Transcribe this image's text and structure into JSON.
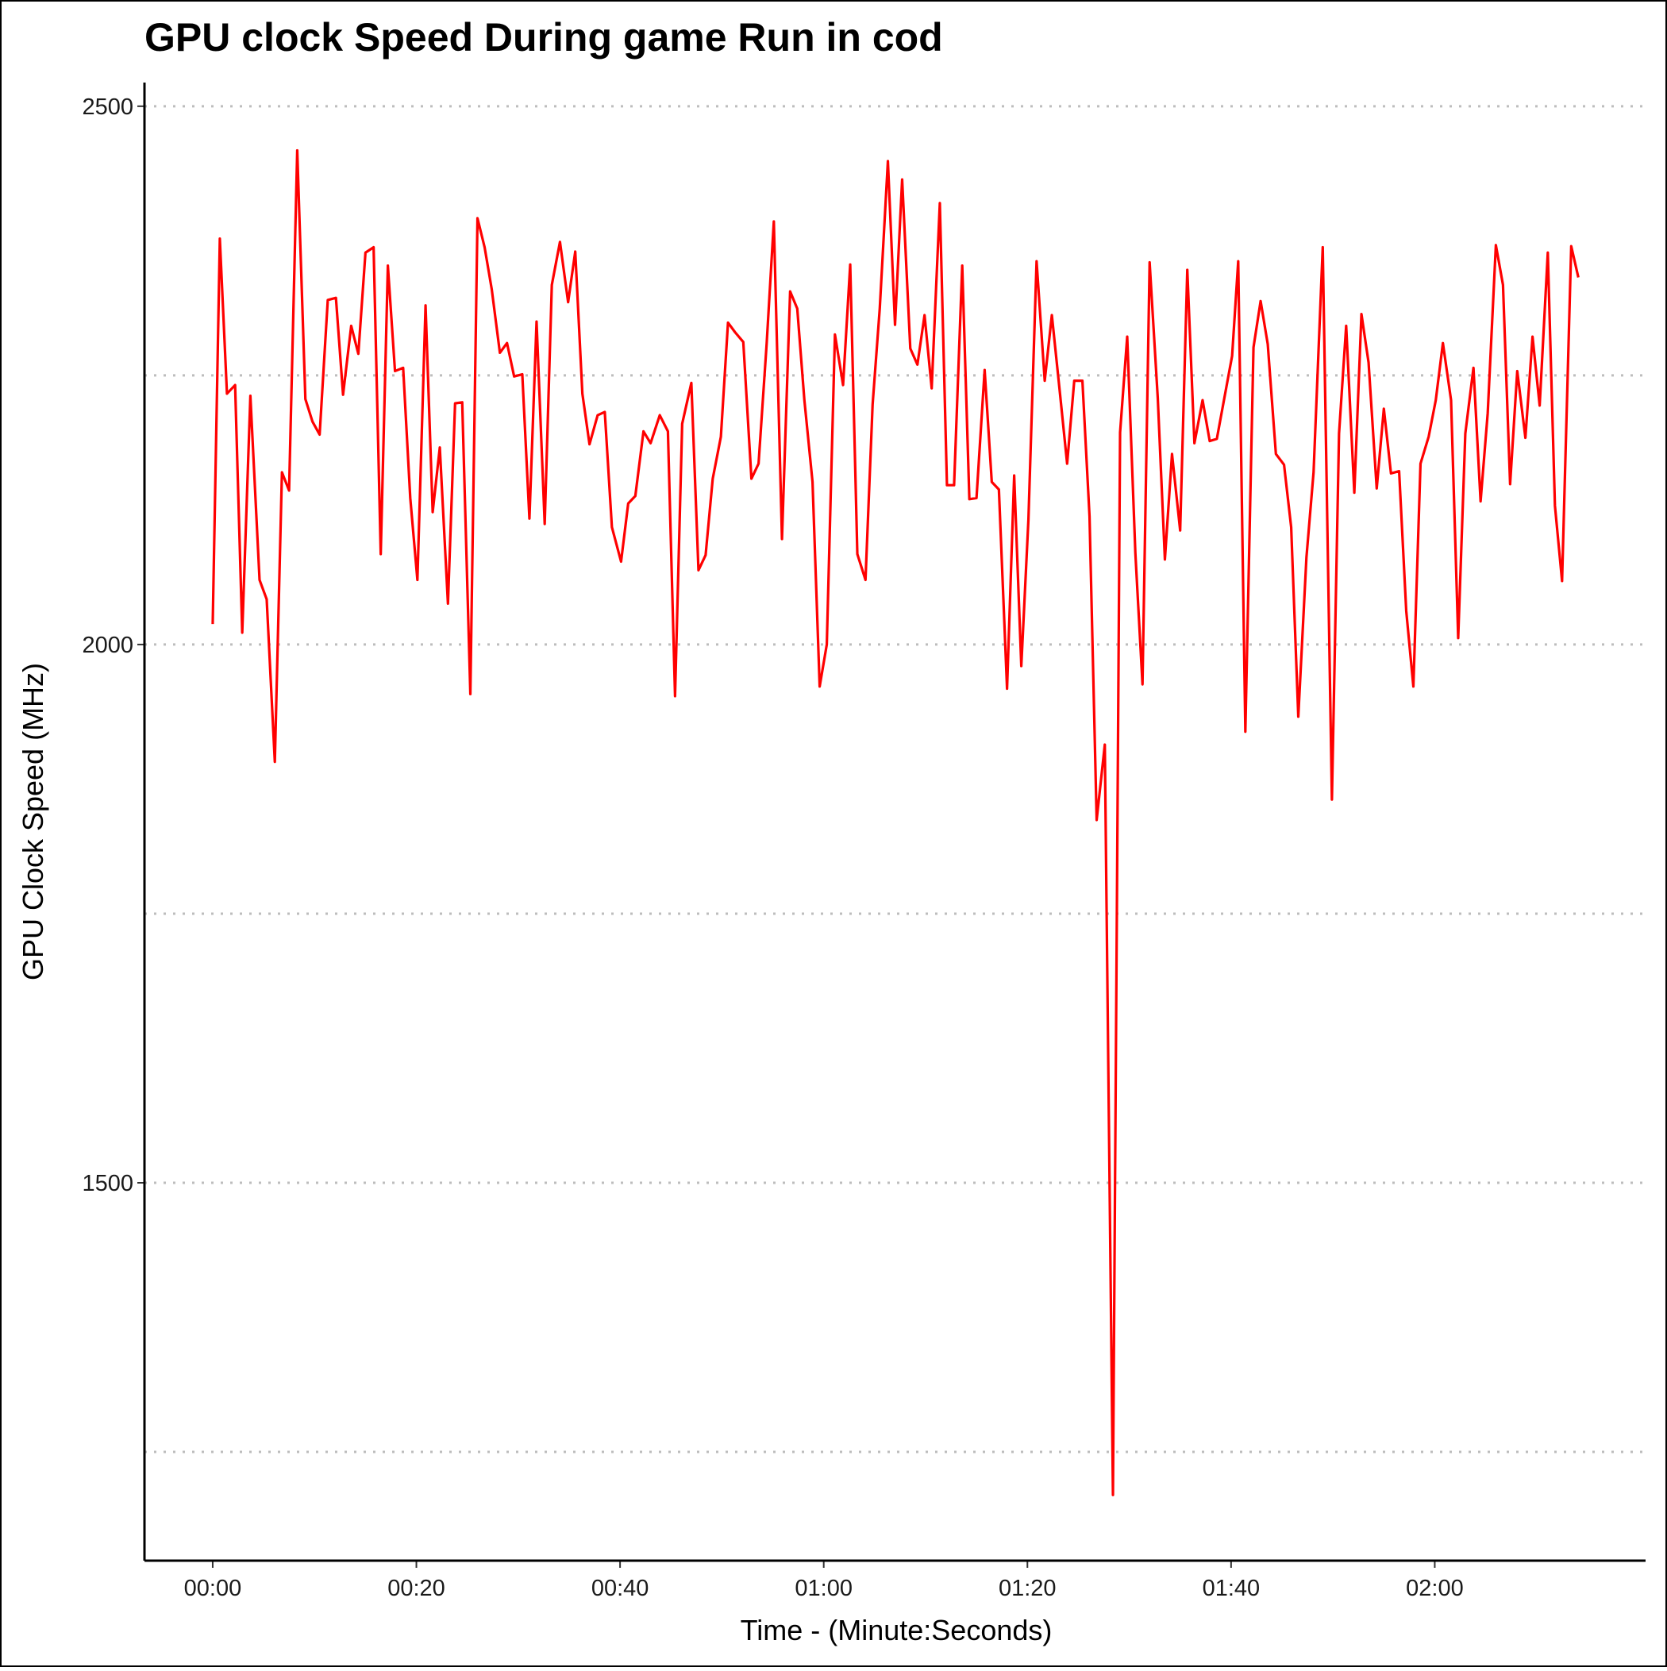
{
  "chart_data": {
    "type": "line",
    "title": "GPU clock Speed During game Run in cod",
    "x_label": "Time - (Minute:Seconds)",
    "y_label": "GPU Clock Speed (MHz)",
    "color": "#ff0000",
    "grid": true,
    "xlim": [
      -6.7,
      140.7
    ],
    "ylim": [
      1149,
      2522
    ],
    "xticks": [
      {
        "value": 0,
        "label": "00:00"
      },
      {
        "value": 20,
        "label": "00:20"
      },
      {
        "value": 40,
        "label": "00:40"
      },
      {
        "value": 60,
        "label": "01:00"
      },
      {
        "value": 80,
        "label": "01:20"
      },
      {
        "value": 100,
        "label": "01:40"
      },
      {
        "value": 120,
        "label": "02:00"
      }
    ],
    "yticks": [
      1500,
      2000,
      2500
    ],
    "y_minor_gridlines": [
      1250,
      1750,
      2250
    ],
    "x": [
      0.0,
      0.7,
      1.4,
      2.2,
      2.9,
      3.7,
      4.6,
      5.3,
      6.1,
      6.8,
      7.5,
      8.3,
      9.1,
      9.8,
      10.5,
      11.3,
      12.1,
      12.8,
      13.6,
      14.3,
      15.0,
      15.8,
      16.5,
      17.2,
      17.9,
      18.7,
      19.4,
      20.1,
      20.9,
      21.6,
      22.3,
      23.1,
      23.8,
      24.5,
      25.3,
      26.0,
      26.7,
      27.4,
      28.2,
      28.9,
      29.6,
      30.4,
      31.1,
      31.8,
      32.6,
      33.3,
      34.1,
      34.9,
      35.6,
      36.3,
      37.0,
      37.8,
      38.5,
      39.2,
      40.1,
      40.8,
      41.5,
      42.3,
      43.0,
      43.9,
      44.7,
      45.4,
      46.1,
      47.0,
      47.7,
      48.4,
      49.1,
      49.9,
      50.6,
      51.3,
      52.1,
      52.9,
      53.6,
      54.4,
      55.1,
      55.9,
      56.7,
      57.4,
      58.1,
      58.9,
      59.6,
      60.3,
      61.1,
      61.9,
      62.6,
      63.3,
      64.1,
      64.8,
      65.5,
      66.3,
      67.0,
      67.7,
      68.5,
      69.2,
      69.9,
      70.6,
      71.4,
      72.1,
      72.8,
      73.6,
      74.3,
      75.0,
      75.8,
      76.5,
      77.2,
      78.0,
      78.7,
      79.4,
      80.1,
      80.9,
      81.7,
      82.4,
      83.2,
      83.9,
      84.6,
      85.4,
      86.1,
      86.8,
      87.6,
      88.4,
      89.1,
      89.8,
      90.6,
      91.3,
      92.0,
      92.8,
      93.5,
      94.2,
      95.0,
      95.7,
      96.4,
      97.2,
      97.9,
      98.6,
      99.3,
      100.1,
      100.7,
      101.4,
      102.2,
      102.9,
      103.6,
      104.4,
      105.2,
      105.9,
      106.6,
      107.4,
      108.1,
      109.0,
      109.9,
      110.6,
      111.3,
      112.1,
      112.8,
      113.5,
      114.3,
      115.0,
      115.7,
      116.5,
      117.2,
      117.9,
      118.6,
      119.4,
      120.1,
      120.8,
      121.6,
      122.3,
      123.0,
      123.8,
      124.5,
      125.2,
      126.0,
      126.7,
      127.4,
      128.1,
      128.9,
      129.6,
      130.3,
      131.1,
      131.8,
      132.5,
      133.4,
      134.1
    ],
    "values": [
      2019,
      2377,
      2233,
      2241,
      2011,
      2231,
      2060,
      2042,
      1891,
      2160,
      2143,
      2459,
      2228,
      2207,
      2195,
      2320,
      2322,
      2232,
      2296,
      2270,
      2364,
      2369,
      2084,
      2352,
      2254,
      2257,
      2136,
      2060,
      2315,
      2123,
      2183,
      2038,
      2224,
      2225,
      1954,
      2396,
      2369,
      2330,
      2271,
      2280,
      2249,
      2251,
      2117,
      2300,
      2112,
      2334,
      2374,
      2318,
      2365,
      2233,
      2186,
      2213,
      2216,
      2109,
      2077,
      2131,
      2138,
      2198,
      2187,
      2213,
      2198,
      1952,
      2205,
      2243,
      2069,
      2083,
      2154,
      2193,
      2299,
      2290,
      2281,
      2154,
      2168,
      2280,
      2393,
      2098,
      2328,
      2312,
      2227,
      2151,
      1961,
      2000,
      2288,
      2241,
      2353,
      2084,
      2060,
      2223,
      2312,
      2449,
      2297,
      2432,
      2275,
      2260,
      2306,
      2238,
      2410,
      2148,
      2148,
      2352,
      2135,
      2136,
      2255,
      2151,
      2144,
      1959,
      2157,
      1980,
      2116,
      2356,
      2245,
      2306,
      2233,
      2168,
      2245,
      2245,
      2119,
      1837,
      1907,
      1210,
      2197,
      2286,
      2085,
      1963,
      2355,
      2229,
      2079,
      2177,
      2106,
      2348,
      2187,
      2227,
      2189,
      2191,
      2227,
      2268,
      2356,
      1919,
      2276,
      2319,
      2279,
      2177,
      2167,
      2109,
      1933,
      2081,
      2160,
      2369,
      1856,
      2196,
      2296,
      2141,
      2307,
      2262,
      2145,
      2219,
      2159,
      2161,
      2031,
      1961,
      2168,
      2193,
      2227,
      2280,
      2227,
      2006,
      2196,
      2257,
      2133,
      2215,
      2371,
      2334,
      2149,
      2254,
      2192,
      2286,
      2222,
      2364,
      2129,
      2059,
      2370,
      2341
    ]
  }
}
